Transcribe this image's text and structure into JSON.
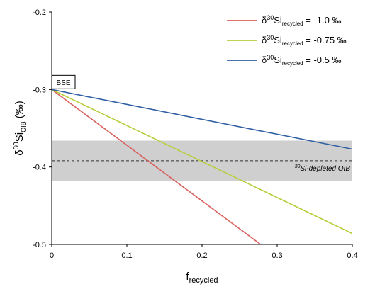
{
  "chart_data": {
    "type": "line",
    "xlabel": {
      "base": "f",
      "sub": "recycled"
    },
    "ylabel": {
      "pre": "δ",
      "sup": "30",
      "base": "Si",
      "sub": "OIB",
      "post": " (‰)"
    },
    "xlim": [
      0,
      0.4
    ],
    "ylim": [
      -0.5,
      -0.2
    ],
    "x_ticks": [
      0,
      0.1,
      0.2,
      0.3,
      0.4
    ],
    "x_tick_labels": [
      "0",
      "0.1",
      "0.2",
      "0.3",
      "0.4"
    ],
    "y_ticks": [
      -0.5,
      -0.4,
      -0.3,
      -0.2
    ],
    "y_tick_labels": [
      "-0.5",
      "-0.4",
      "-0.3",
      "-0.2"
    ],
    "legend_position": "top-right",
    "series": [
      {
        "label": {
          "pre": "δ",
          "sup": "30",
          "base": "Si",
          "sub": "recycled",
          "post": " = -1.0 ‰"
        },
        "color": "#d9605c",
        "x": [
          0,
          0.278
        ],
        "y": [
          -0.3,
          -0.5
        ]
      },
      {
        "label": {
          "pre": "δ",
          "sup": "30",
          "base": "Si",
          "sub": "recycled",
          "post": " = -0.75 ‰"
        },
        "color": "#b9cc3a",
        "x": [
          0,
          0.4
        ],
        "y": [
          -0.3,
          -0.486
        ]
      },
      {
        "label": {
          "pre": "δ",
          "sup": "30",
          "base": "Si",
          "sub": "recycled",
          "post": " = -0.5 ‰"
        },
        "color": "#2f5ea3",
        "x": [
          0,
          0.4
        ],
        "y": [
          -0.3,
          -0.377
        ]
      }
    ],
    "band": {
      "y0": -0.418,
      "y1": -0.366,
      "mean": -0.392,
      "color": "#cfcfcf",
      "label": {
        "sup": "30",
        "text": "Si-depleted OIB"
      }
    },
    "annotations": [
      {
        "text": "BSE",
        "x": 0,
        "y": -0.3
      }
    ]
  }
}
